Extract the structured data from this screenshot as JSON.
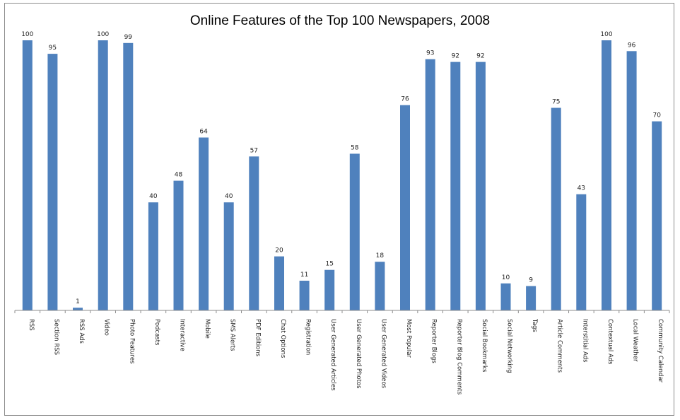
{
  "chart_data": {
    "type": "bar",
    "title": "Online Features of the Top 100 Newspapers, 2008",
    "xlabel": "",
    "ylabel": "",
    "ylim": [
      0,
      100
    ],
    "grid": false,
    "legend": "none",
    "bar_color": "#4f81bd",
    "categories": [
      "RSS",
      "Section RSS",
      "RSS Ads",
      "Video",
      "Photo Features",
      "Podcasts",
      "Interactive",
      "Mobile",
      "SMS Alerts",
      "PDF Editions",
      "Chat Options",
      "Registration",
      "User Generated Articles",
      "User Generated Photos",
      "User Generated Videos",
      "Most Popular",
      "Reporter Blogs",
      "Reporter Blog Comments",
      "Social Bookmarks",
      "Social Networking",
      "Tags",
      "Article Comments",
      "Interstitial Ads",
      "Contextual Ads",
      "Local Weather",
      "Community Calendar"
    ],
    "values": [
      100,
      95,
      1,
      100,
      99,
      40,
      48,
      64,
      40,
      57,
      20,
      11,
      15,
      58,
      18,
      76,
      93,
      92,
      92,
      10,
      9,
      75,
      43,
      100,
      96,
      70
    ]
  }
}
